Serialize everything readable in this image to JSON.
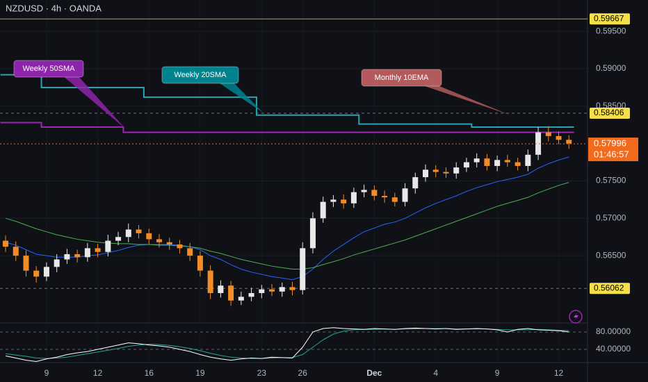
{
  "header": {
    "title": "NZDUSD · 4h · OANDA"
  },
  "chart_data": {
    "type": "candlestick",
    "categories": [
      null,
      null,
      null,
      null,
      "9",
      null,
      null,
      null,
      null,
      "12",
      null,
      null,
      null,
      null,
      "16",
      null,
      null,
      null,
      null,
      "19",
      null,
      null,
      null,
      null,
      null,
      "23",
      null,
      null,
      null,
      "26",
      null,
      null,
      null,
      null,
      null,
      null,
      "Dec",
      null,
      null,
      null,
      null,
      null,
      "4",
      null,
      null,
      null,
      null,
      null,
      "9",
      null,
      null,
      null,
      null,
      null,
      "12",
      null
    ],
    "open": [
      0.567,
      0.5662,
      0.565,
      0.563,
      0.5622,
      0.5635,
      0.5645,
      0.5652,
      0.5648,
      0.566,
      0.5655,
      0.567,
      0.5675,
      0.5685,
      0.568,
      0.5672,
      0.5668,
      0.5665,
      0.566,
      0.565,
      0.563,
      0.56,
      0.561,
      0.559,
      0.5595,
      0.56,
      0.5605,
      0.5602,
      0.5608,
      0.5604,
      0.566,
      0.57,
      0.5722,
      0.5725,
      0.572,
      0.5735,
      0.5738,
      0.573,
      0.5728,
      0.5722,
      0.574,
      0.5755,
      0.5765,
      0.5762,
      0.576,
      0.5768,
      0.5775,
      0.578,
      0.577,
      0.5778,
      0.5775,
      0.577,
      0.5785,
      0.5815,
      0.581,
      0.5805
    ],
    "high": [
      0.5677,
      0.5669,
      0.5657,
      0.5636,
      0.5641,
      0.5652,
      0.5659,
      0.5658,
      0.5667,
      0.5666,
      0.5678,
      0.5682,
      0.5693,
      0.5691,
      0.5686,
      0.5679,
      0.5674,
      0.5671,
      0.5667,
      0.5656,
      0.5637,
      0.5617,
      0.5616,
      0.5602,
      0.5607,
      0.5611,
      0.5612,
      0.5614,
      0.5615,
      0.5668,
      0.5708,
      0.5729,
      0.5731,
      0.5732,
      0.5741,
      0.5745,
      0.5744,
      0.5737,
      0.5734,
      0.5747,
      0.5761,
      0.5772,
      0.5771,
      0.5768,
      0.5775,
      0.5781,
      0.5787,
      0.5786,
      0.5784,
      0.5785,
      0.5781,
      0.5792,
      0.5822,
      0.5823,
      0.5816,
      0.5811
    ],
    "low": [
      0.5655,
      0.5643,
      0.5622,
      0.5614,
      0.5616,
      0.5628,
      0.5639,
      0.5641,
      0.5642,
      0.5648,
      0.5649,
      0.5664,
      0.5668,
      0.5673,
      0.5665,
      0.5661,
      0.5658,
      0.5653,
      0.5643,
      0.5622,
      0.5592,
      0.5594,
      0.5583,
      0.5584,
      0.5589,
      0.5593,
      0.5596,
      0.5595,
      0.5597,
      0.5598,
      0.5653,
      0.5694,
      0.5715,
      0.5713,
      0.5714,
      0.5728,
      0.5724,
      0.5721,
      0.5716,
      0.5716,
      0.5733,
      0.5749,
      0.5755,
      0.5754,
      0.5753,
      0.5762,
      0.5768,
      0.5764,
      0.5763,
      0.5769,
      0.5764,
      0.5763,
      0.5778,
      0.5803,
      0.5799,
      0.5793
    ],
    "close": [
      0.5662,
      0.565,
      0.563,
      0.5622,
      0.5635,
      0.5645,
      0.5652,
      0.5648,
      0.566,
      0.5655,
      0.567,
      0.5675,
      0.5685,
      0.568,
      0.5672,
      0.5668,
      0.5665,
      0.566,
      0.565,
      0.563,
      0.56,
      0.561,
      0.559,
      0.5595,
      0.56,
      0.5605,
      0.5602,
      0.5608,
      0.5604,
      0.566,
      0.57,
      0.5722,
      0.5725,
      0.572,
      0.5735,
      0.5738,
      0.573,
      0.5728,
      0.5722,
      0.574,
      0.5755,
      0.5765,
      0.5762,
      0.576,
      0.5768,
      0.5775,
      0.578,
      0.577,
      0.5778,
      0.5775,
      0.577,
      0.5785,
      0.5815,
      0.581,
      0.5805,
      0.58
    ],
    "up_color": "#e8e8e8",
    "down_color": "#f28c28",
    "lines": [
      {
        "color": "#2962ff",
        "step": false,
        "values": [
          0.5668,
          0.5664,
          0.5658,
          0.5652,
          0.565,
          0.5648,
          0.5648,
          0.5648,
          0.565,
          0.5651,
          0.5654,
          0.5657,
          0.5661,
          0.5664,
          0.5665,
          0.5665,
          0.5665,
          0.5664,
          0.5662,
          0.5658,
          0.565,
          0.5645,
          0.5638,
          0.5632,
          0.5628,
          0.5625,
          0.5622,
          0.562,
          0.5618,
          0.5622,
          0.5632,
          0.5645,
          0.5656,
          0.5665,
          0.5674,
          0.5682,
          0.5687,
          0.5692,
          0.5695,
          0.57,
          0.5707,
          0.5714,
          0.572,
          0.5725,
          0.573,
          0.5736,
          0.5741,
          0.5745,
          0.5749,
          0.5752,
          0.5755,
          0.5759,
          0.5767,
          0.5773,
          0.5778,
          0.5782
        ]
      },
      {
        "color": "#4caf50",
        "step": false,
        "values": [
          0.57,
          0.5696,
          0.5691,
          0.5686,
          0.5682,
          0.5678,
          0.5675,
          0.5672,
          0.567,
          0.5668,
          0.5667,
          0.5666,
          0.5666,
          0.5665,
          0.5665,
          0.5664,
          0.5664,
          0.5663,
          0.5662,
          0.566,
          0.5656,
          0.5653,
          0.5649,
          0.5645,
          0.5642,
          0.5639,
          0.5636,
          0.5634,
          0.5632,
          0.5632,
          0.5634,
          0.5638,
          0.5642,
          0.5646,
          0.5651,
          0.5655,
          0.5659,
          0.5663,
          0.5667,
          0.5671,
          0.5676,
          0.5681,
          0.5686,
          0.5691,
          0.5696,
          0.5701,
          0.5706,
          0.5711,
          0.5716,
          0.572,
          0.5724,
          0.5728,
          0.5734,
          0.5739,
          0.5744,
          0.5748
        ]
      },
      {
        "color": "#26a6b0",
        "step": true,
        "values": [
          0.5892,
          0.5892,
          0.5892,
          0.5892,
          0.5875,
          0.5875,
          0.5875,
          0.5875,
          0.5875,
          0.5875,
          0.5875,
          0.5875,
          0.5875,
          0.5875,
          0.5862,
          0.5862,
          0.5862,
          0.5862,
          0.5862,
          0.5862,
          0.5862,
          0.5862,
          0.5862,
          0.5862,
          0.5862,
          0.5838,
          0.5838,
          0.5838,
          0.5838,
          0.5838,
          0.5838,
          0.5838,
          0.5838,
          0.5838,
          0.5838,
          0.5826,
          0.5826,
          0.5826,
          0.5826,
          0.5826,
          0.5826,
          0.5826,
          0.5826,
          0.5826,
          0.5826,
          0.5826,
          0.5822,
          0.5822,
          0.5822,
          0.5822,
          0.5822,
          0.5822,
          0.5822,
          0.5822,
          0.5822,
          0.5822
        ]
      },
      {
        "color": "#9c27b0",
        "step": true,
        "values": [
          0.5828,
          0.5828,
          0.5828,
          0.5828,
          0.5822,
          0.5822,
          0.5822,
          0.5822,
          0.5822,
          0.5822,
          0.5822,
          0.5822,
          0.5815,
          0.5815,
          0.5815,
          0.5815,
          0.5815,
          0.5815,
          0.5815,
          0.5815,
          0.5815,
          0.5815,
          0.5815,
          0.5815,
          0.5815,
          0.5815,
          0.5815,
          0.5815,
          0.5815,
          0.5815,
          0.5815,
          0.5815,
          0.5815,
          0.5815,
          0.5815,
          0.5815,
          0.5815,
          0.5815,
          0.5815,
          0.5815,
          0.5815,
          0.5815,
          0.5815,
          0.5815,
          0.5815,
          0.5815,
          0.5815,
          0.5815,
          0.5815,
          0.5815,
          0.5815,
          0.5815,
          0.5815,
          0.5815,
          0.5815,
          0.5815
        ]
      }
    ],
    "levels": [
      {
        "value": 0.59667,
        "color": "#f5e04a"
      },
      {
        "value": 0.58406,
        "color": "#f5e04a"
      },
      {
        "value": 0.56062,
        "color": "#f5e04a"
      }
    ],
    "last_price": {
      "value": 0.57996,
      "countdown": "01:46:57",
      "color": "#f26b1d"
    },
    "annotations": [
      {
        "text": "Weekly 50SMA",
        "color": "#8e24aa"
      },
      {
        "text": "Weekly 20SMA",
        "color": "#00838f"
      },
      {
        "text": "Monthly 10EMA",
        "color": "#b25a5c"
      }
    ],
    "ylim": [
      0.556,
      0.5992
    ],
    "yticks": [
      {
        "value": 0.595,
        "label": "0.59500"
      },
      {
        "value": 0.59,
        "label": "0.59000"
      },
      {
        "value": 0.585,
        "label": "0.58500"
      },
      {
        "value": 0.575,
        "label": "0.57500"
      },
      {
        "value": 0.57,
        "label": "0.57000"
      },
      {
        "value": 0.565,
        "label": "0.56500"
      }
    ],
    "oscillator": {
      "series": [
        {
          "color": "#ffffff",
          "values": [
            25,
            20,
            15,
            12,
            18,
            22,
            28,
            32,
            35,
            40,
            45,
            50,
            55,
            53,
            50,
            48,
            45,
            40,
            35,
            28,
            22,
            18,
            15,
            18,
            20,
            19,
            22,
            21,
            20,
            45,
            80,
            88,
            90,
            88,
            87,
            86,
            88,
            87,
            86,
            88,
            89,
            88,
            87,
            88,
            86,
            87,
            88,
            87,
            85,
            80,
            86,
            88,
            85,
            84,
            83,
            80
          ]
        },
        {
          "color": "#26a69a",
          "values": [
            30,
            27,
            24,
            20,
            19,
            20,
            22,
            26,
            30,
            34,
            38,
            42,
            47,
            50,
            52,
            51,
            49,
            46,
            42,
            37,
            31,
            26,
            22,
            20,
            19,
            19,
            20,
            21,
            21,
            28,
            45,
            62,
            75,
            82,
            85,
            86,
            86,
            87,
            86,
            87,
            87,
            88,
            88,
            88,
            87,
            87,
            87,
            87,
            86,
            85,
            85,
            85,
            86,
            85,
            84,
            83
          ]
        }
      ],
      "ylim": [
        12.8,
        97.6
      ],
      "yticks": [
        {
          "value": 80,
          "label": "80.00000"
        },
        {
          "value": 40,
          "label": "40.00000"
        }
      ]
    }
  }
}
